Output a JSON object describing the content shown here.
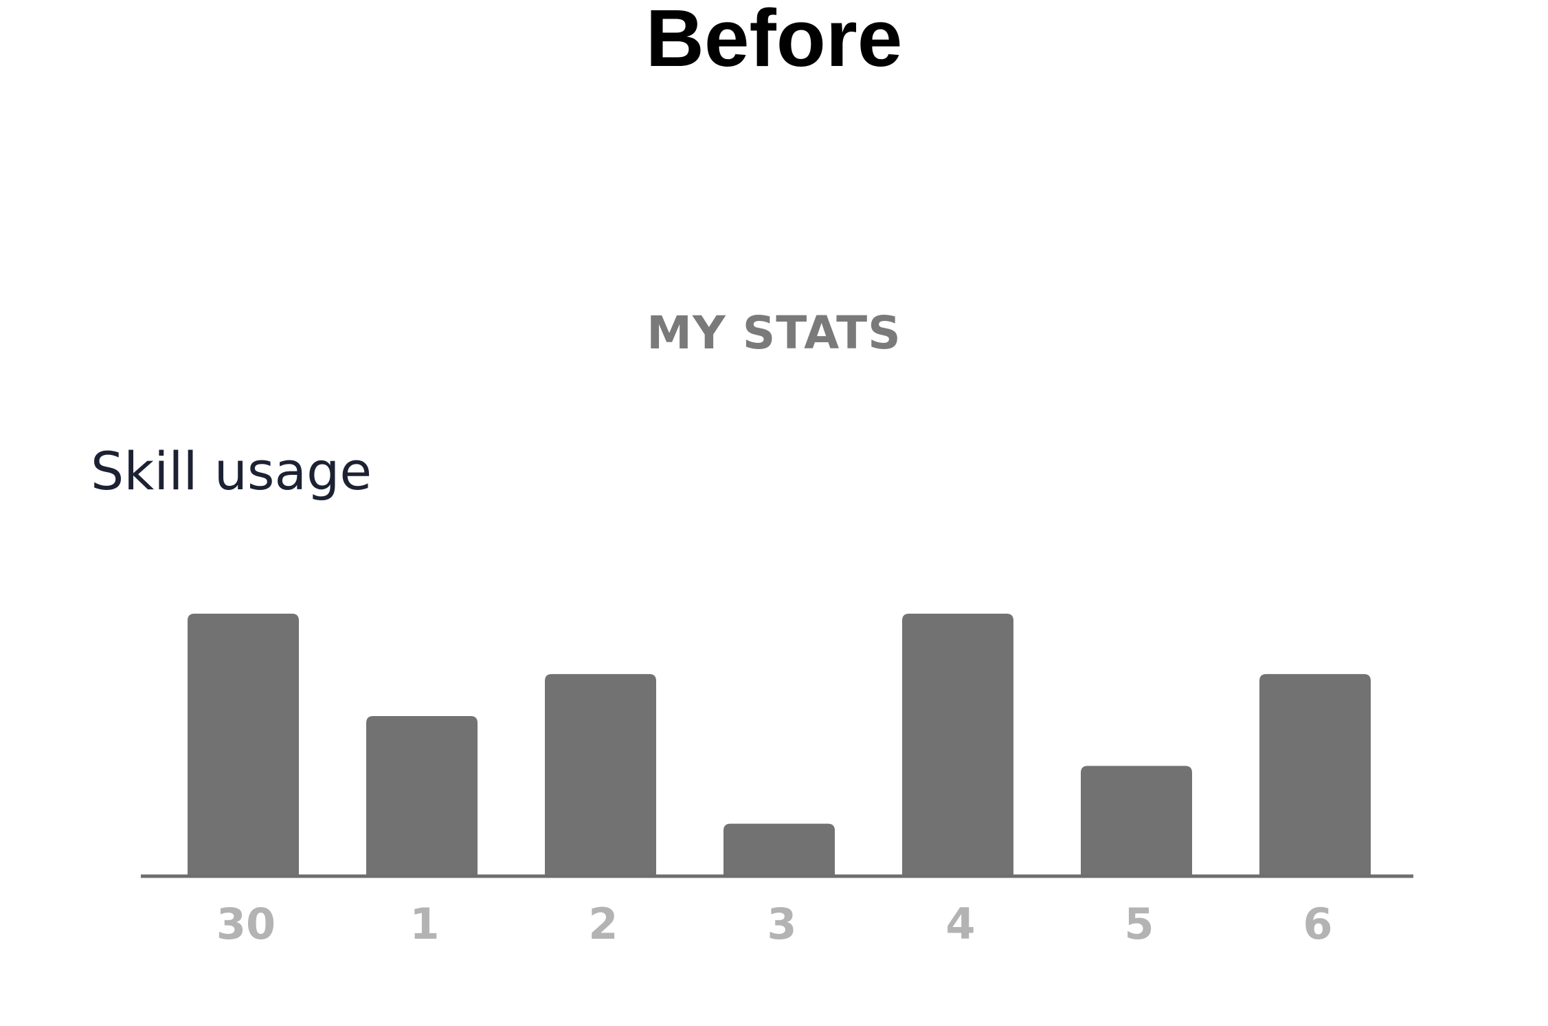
{
  "heading": "Before",
  "section_title": "MY STATS",
  "chart_data": {
    "type": "bar",
    "title": "Skill usage",
    "categories": [
      "30",
      "1",
      "2",
      "3",
      "4",
      "5",
      "6"
    ],
    "values": [
      100,
      61,
      77,
      20,
      100,
      42,
      77
    ],
    "ylim": [
      0,
      100
    ],
    "grid": false,
    "legend": "none",
    "bar_color": "#727272",
    "axis_color": "#6e6e6e",
    "tick_label_color": "#b3b3b3"
  }
}
